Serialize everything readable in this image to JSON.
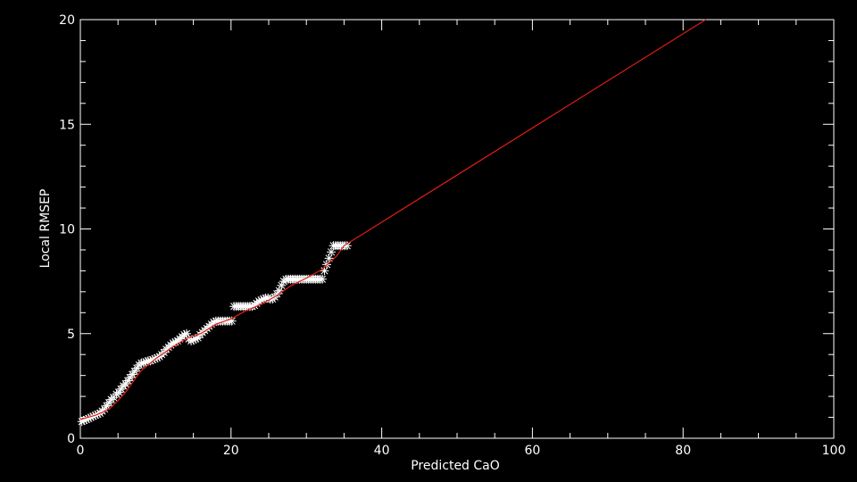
{
  "chart_data": {
    "type": "scatter",
    "xlabel": "Predicted CaO",
    "ylabel": "Local RMSEP",
    "xlim": [
      0,
      100
    ],
    "ylim": [
      0,
      20
    ],
    "xticks": [
      0,
      20,
      40,
      60,
      80,
      100
    ],
    "yticks": [
      0,
      5,
      10,
      15,
      20
    ],
    "xtick_labels": [
      "0",
      "20",
      "40",
      "60",
      "80",
      "100"
    ],
    "ytick_labels": [
      "0",
      "5",
      "10",
      "15",
      "20"
    ],
    "grid": false,
    "background": "#000000",
    "axis_color": "#ffffff",
    "points": {
      "marker": "asterisk",
      "color": "#ffffff",
      "x": [
        0.2,
        0.5,
        0.8,
        1.1,
        1.4,
        1.7,
        2.0,
        2.3,
        2.6,
        2.9,
        3.2,
        3.5,
        3.8,
        4.1,
        4.4,
        4.8,
        5.1,
        5.4,
        5.7,
        6.0,
        6.3,
        6.6,
        6.9,
        7.2,
        7.5,
        7.8,
        8.1,
        8.4,
        8.7,
        9.0,
        9.3,
        9.6,
        9.9,
        10.2,
        10.5,
        10.8,
        11.1,
        11.4,
        11.7,
        12.0,
        12.3,
        12.6,
        12.9,
        13.2,
        13.5,
        13.8,
        14.1,
        14.4,
        14.7,
        15.0,
        15.3,
        15.6,
        15.9,
        16.2,
        16.5,
        16.8,
        17.1,
        17.4,
        17.7,
        18.0,
        18.3,
        18.6,
        18.9,
        19.2,
        19.5,
        19.8,
        20.1,
        20.4,
        20.7,
        21.0,
        21.3,
        21.6,
        21.9,
        22.2,
        22.5,
        22.8,
        23.1,
        23.4,
        23.7,
        24.0,
        24.3,
        24.6,
        24.9,
        25.2,
        25.5,
        25.8,
        26.1,
        26.4,
        26.7,
        27.0,
        27.3,
        27.6,
        27.9,
        28.2,
        28.5,
        28.8,
        29.1,
        29.4,
        29.7,
        30.0,
        30.3,
        30.6,
        30.9,
        31.2,
        31.5,
        31.8,
        32.1,
        32.4,
        32.7,
        33.0,
        33.3,
        33.6,
        33.9,
        34.2,
        34.5,
        34.8,
        35.1,
        35.4
      ],
      "y": [
        0.8,
        0.85,
        0.9,
        0.95,
        1.0,
        1.05,
        1.1,
        1.15,
        1.2,
        1.3,
        1.4,
        1.55,
        1.7,
        1.85,
        1.95,
        2.1,
        2.2,
        2.35,
        2.5,
        2.6,
        2.75,
        2.9,
        3.05,
        3.2,
        3.35,
        3.5,
        3.6,
        3.6,
        3.65,
        3.7,
        3.7,
        3.75,
        3.8,
        3.85,
        3.9,
        4.0,
        4.1,
        4.25,
        4.35,
        4.45,
        4.55,
        4.6,
        4.65,
        4.75,
        4.85,
        4.95,
        5.0,
        4.75,
        4.65,
        4.7,
        4.75,
        4.8,
        4.95,
        5.05,
        5.15,
        5.25,
        5.35,
        5.45,
        5.55,
        5.6,
        5.6,
        5.6,
        5.6,
        5.6,
        5.6,
        5.6,
        5.6,
        6.3,
        6.3,
        6.3,
        6.3,
        6.3,
        6.3,
        6.3,
        6.3,
        6.3,
        6.35,
        6.45,
        6.55,
        6.6,
        6.65,
        6.7,
        6.7,
        6.65,
        6.65,
        6.75,
        6.9,
        7.05,
        7.3,
        7.5,
        7.6,
        7.6,
        7.6,
        7.6,
        7.6,
        7.6,
        7.6,
        7.6,
        7.6,
        7.6,
        7.6,
        7.6,
        7.6,
        7.6,
        7.6,
        7.6,
        7.6,
        8.0,
        8.3,
        8.6,
        8.9,
        9.2,
        9.2,
        9.2,
        9.2,
        9.2,
        9.2,
        9.2
      ]
    },
    "fit_line": {
      "color": "#e01e14",
      "x": [
        0,
        1,
        2,
        3,
        4,
        5,
        6,
        7,
        8,
        9,
        10,
        12,
        14,
        16,
        18,
        20,
        22,
        24,
        26,
        28,
        30,
        32,
        34,
        35,
        83
      ],
      "y": [
        0.9,
        1.0,
        1.1,
        1.25,
        1.45,
        1.8,
        2.2,
        2.7,
        3.2,
        3.5,
        3.8,
        4.3,
        4.75,
        5.0,
        5.45,
        5.7,
        6.1,
        6.4,
        6.8,
        7.3,
        7.65,
        8.05,
        8.7,
        9.2,
        20.0
      ]
    }
  }
}
